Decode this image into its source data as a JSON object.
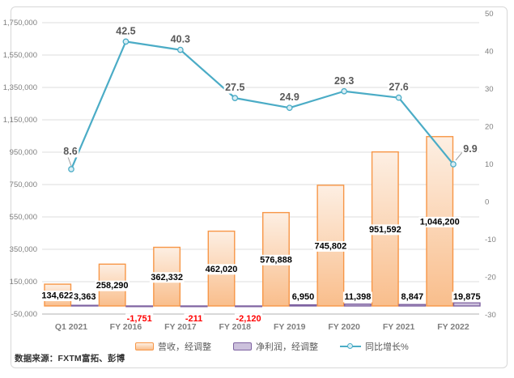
{
  "source_note": "数据来源：FXTM富拓、彭博",
  "legend": {
    "items": [
      {
        "label": "营收，经调整"
      },
      {
        "label": "净利润，经调整"
      },
      {
        "label": "同比增长%"
      }
    ]
  },
  "chart_data": {
    "type": "combo",
    "title": "",
    "categories": [
      "Q1 2021",
      "FY 2016",
      "FY 2017",
      "FY 2018",
      "FY 2019",
      "FY 2020",
      "FY 2021",
      "FY 2022"
    ],
    "series": [
      {
        "name": "营收，经调整",
        "type": "bar",
        "axis": "left",
        "color": "#F79646",
        "fill_top": "#FDEFE3",
        "fill_bottom": "#F9BE8C",
        "values": [
          134622,
          258290,
          362332,
          462020,
          576888,
          745802,
          951592,
          1046200
        ],
        "labels": [
          "134,622",
          "258,290",
          "362,332",
          "462,020",
          "576,888",
          "745,802",
          "951,592",
          "1,046,200"
        ]
      },
      {
        "name": "净利润，经调整",
        "type": "bar",
        "axis": "left",
        "color": "#7E62A1",
        "fill": "#CCC1DC",
        "values": [
          3363,
          -1751,
          -211,
          -2120,
          6950,
          11398,
          8847,
          19875
        ],
        "labels": [
          "3,363",
          "-1,751",
          "-211",
          "-2,120",
          "6,950",
          "11,398",
          "8,847",
          "19,875"
        ]
      },
      {
        "name": "同比增长%",
        "type": "line",
        "axis": "right",
        "color": "#4BACC6",
        "marker_fill": "#D9EEF5",
        "values": [
          8.6,
          42.5,
          40.3,
          27.5,
          24.9,
          29.3,
          27.6,
          9.9
        ],
        "labels": [
          "8.6",
          "42.5",
          "40.3",
          "27.5",
          "24.9",
          "29.3",
          "27.6",
          "9.9"
        ]
      }
    ],
    "left_axis": {
      "min": -50000,
      "max": 1750000,
      "step": 200000,
      "tick_labels": [
        "-50,000",
        "150,000",
        "350,000",
        "550,000",
        "750,000",
        "950,000",
        "1,150,000",
        "1,350,000",
        "1,550,000",
        "1,750,000"
      ]
    },
    "right_axis": {
      "min": -30,
      "max": 50,
      "step": 10,
      "tick_labels": [
        "-30",
        "-20",
        "-10",
        "0",
        "10",
        "20",
        "30",
        "40",
        "50"
      ]
    },
    "grid": true,
    "legend_position": "bottom",
    "styles": {
      "negative_label_color": "#FF0000",
      "data_label_color": "#000000",
      "line_label_color": "#595959",
      "axis_text_color": "#7F7F7F",
      "grid_color": "#DCDCDC",
      "axis_line_color": "#C0C0C0",
      "leader_line_color": "#9A9A9A"
    }
  }
}
